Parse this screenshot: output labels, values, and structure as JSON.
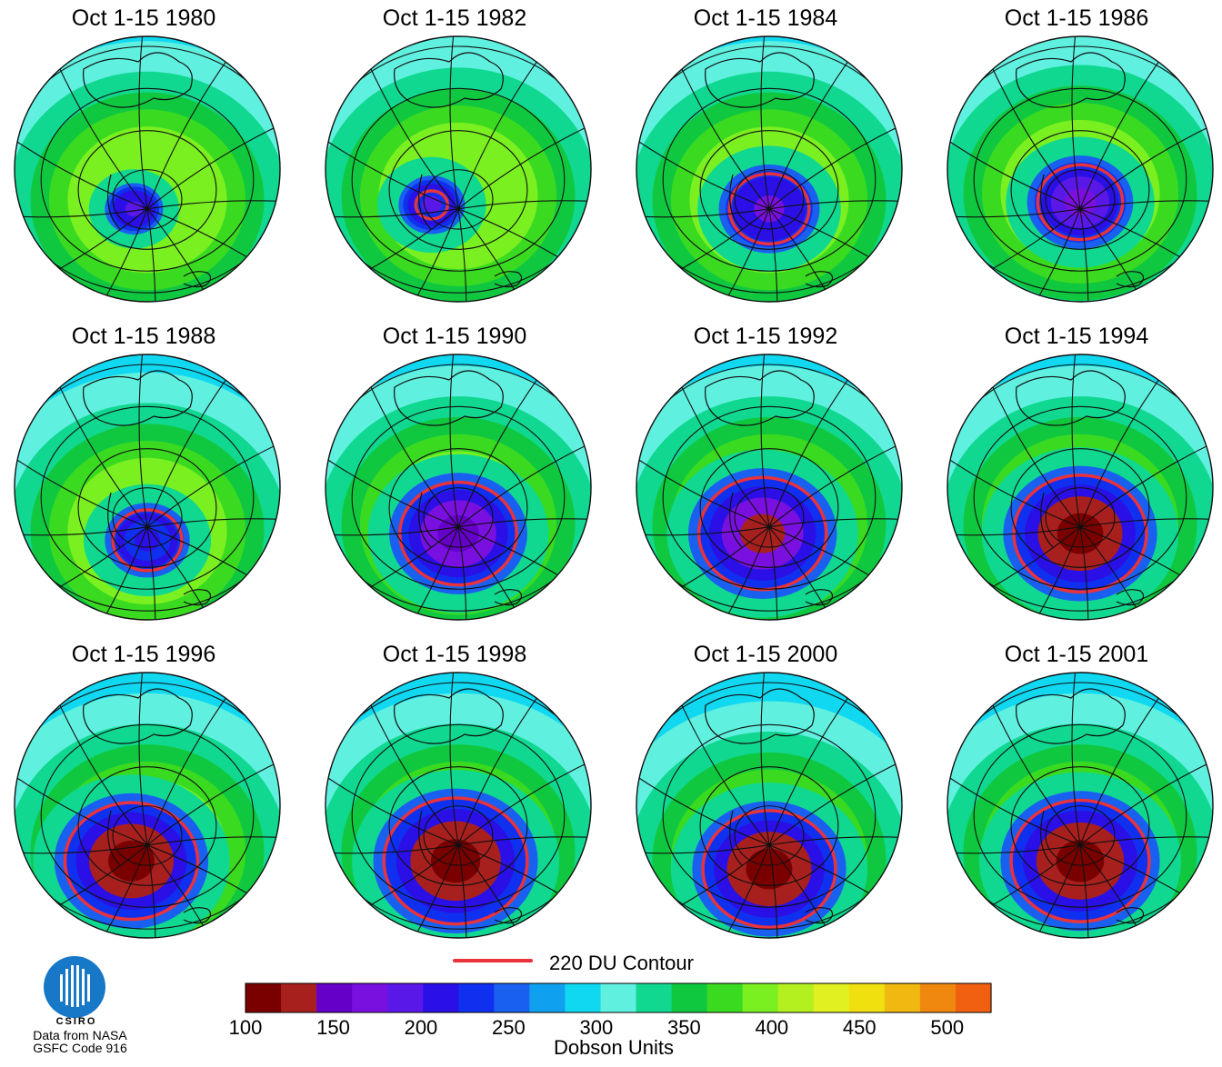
{
  "panels": [
    {
      "title": "Oct 1-15 1980",
      "min_du": 190,
      "hole_scale": 0.0,
      "contour_scale": 0.0,
      "offset": [
        -0.1,
        0.0
      ]
    },
    {
      "title": "Oct 1-15 1982",
      "min_du": 200,
      "hole_scale": 0.25,
      "contour_scale": 0.12,
      "offset": [
        -0.2,
        -0.03
      ]
    },
    {
      "title": "Oct 1-15 1984",
      "min_du": 180,
      "hole_scale": 0.38,
      "contour_scale": 0.3,
      "offset": [
        0.0,
        0.0
      ]
    },
    {
      "title": "Oct 1-15 1986",
      "min_du": 175,
      "hole_scale": 0.4,
      "contour_scale": 0.32,
      "offset": [
        0.0,
        -0.05
      ]
    },
    {
      "title": "Oct 1-15 1988",
      "min_du": 205,
      "hole_scale": 0.32,
      "contour_scale": 0.26,
      "offset": [
        0.0,
        0.1
      ]
    },
    {
      "title": "Oct 1-15 1990",
      "min_du": 150,
      "hole_scale": 0.52,
      "contour_scale": 0.44,
      "offset": [
        0.0,
        0.05
      ]
    },
    {
      "title": "Oct 1-15 1992",
      "min_du": 140,
      "hole_scale": 0.56,
      "contour_scale": 0.48,
      "offset": [
        -0.05,
        0.05
      ]
    },
    {
      "title": "Oct 1-15 1994",
      "min_du": 115,
      "hole_scale": 0.58,
      "contour_scale": 0.5,
      "offset": [
        0.0,
        0.05
      ]
    },
    {
      "title": "Oct 1-15 1996",
      "min_du": 115,
      "hole_scale": 0.58,
      "contour_scale": 0.5,
      "offset": [
        -0.12,
        0.12
      ]
    },
    {
      "title": "Oct 1-15 1998",
      "min_du": 105,
      "hole_scale": 0.62,
      "contour_scale": 0.54,
      "offset": [
        -0.02,
        0.12
      ]
    },
    {
      "title": "Oct 1-15 2000",
      "min_du": 105,
      "hole_scale": 0.58,
      "contour_scale": 0.5,
      "offset": [
        0.0,
        0.18
      ]
    },
    {
      "title": "Oct 1-15 2001",
      "min_du": 110,
      "hole_scale": 0.6,
      "contour_scale": 0.52,
      "offset": [
        0.0,
        0.12
      ]
    }
  ],
  "contour_legend": {
    "label": "220 DU Contour",
    "color": "#e8323c"
  },
  "colorbar": {
    "title": "Dobson Units",
    "range": [
      100,
      525
    ],
    "ticks": [
      "100",
      "150",
      "200",
      "250",
      "300",
      "350",
      "400",
      "450",
      "500"
    ],
    "colors": [
      "#7a0000",
      "#a8201e",
      "#6400c8",
      "#7a10e0",
      "#5a18e8",
      "#2a10e6",
      "#1030f0",
      "#1a60f0",
      "#10a0f0",
      "#10d8f0",
      "#60f0e0",
      "#10d890",
      "#10c840",
      "#3ada20",
      "#7af020",
      "#b4f020",
      "#e0f020",
      "#f0e010",
      "#f0b810",
      "#f08810",
      "#f06010"
    ]
  },
  "logo": {
    "name": "CSIRO",
    "credit_line1": "Data from NASA",
    "credit_line2": "GSFC Code 916"
  }
}
